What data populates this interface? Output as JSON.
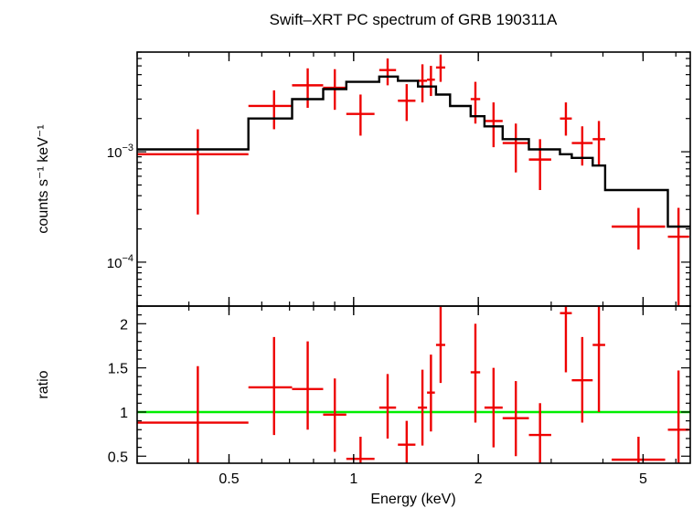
{
  "chart_data": {
    "type": "scatter",
    "title": "Swift–XRT PC spectrum of GRB 190311A",
    "xlabel": "Energy (keV)",
    "x_scale": "log",
    "xlim": [
      0.3,
      6.5
    ],
    "x_ticks": [
      {
        "value": 0.5,
        "label": "0.5"
      },
      {
        "value": 1,
        "label": "1"
      },
      {
        "value": 2,
        "label": "2"
      },
      {
        "value": 5,
        "label": "5"
      }
    ],
    "panels": [
      {
        "name": "spectrum",
        "ylabel": "counts s⁻¹ keV⁻¹",
        "y_scale": "log",
        "ylim": [
          4e-05,
          0.008
        ],
        "y_ticks": [
          {
            "value": 0.001,
            "base": "10",
            "exp": "−3"
          },
          {
            "value": 0.0001,
            "base": "10",
            "exp": "−4"
          }
        ],
        "series": [
          {
            "kind": "data",
            "color": "#ee0000",
            "points": [
              {
                "x": 0.4204,
                "xlo": 0.3,
                "xhi": 0.557,
                "y": 0.00095,
                "ylo": 0.00027,
                "yhi": 0.0016
              },
              {
                "x": 0.6424,
                "xlo": 0.557,
                "xhi": 0.71,
                "y": 0.0026,
                "ylo": 0.0016,
                "yhi": 0.0036
              },
              {
                "x": 0.7745,
                "xlo": 0.71,
                "xhi": 0.844,
                "y": 0.004,
                "ylo": 0.0025,
                "yhi": 0.0057
              },
              {
                "x": 0.9005,
                "xlo": 0.844,
                "xhi": 0.96,
                "y": 0.0038,
                "ylo": 0.0024,
                "yhi": 0.0056
              },
              {
                "x": 1.039,
                "xlo": 0.96,
                "xhi": 1.123,
                "y": 0.0022,
                "ylo": 0.0014,
                "yhi": 0.0033
              },
              {
                "x": 1.208,
                "xlo": 1.153,
                "xhi": 1.266,
                "y": 0.0055,
                "ylo": 0.004,
                "yhi": 0.007
              },
              {
                "x": 1.343,
                "xlo": 1.279,
                "xhi": 1.41,
                "y": 0.0029,
                "ylo": 0.0019,
                "yhi": 0.0041
              },
              {
                "x": 1.466,
                "xlo": 1.43,
                "xhi": 1.504,
                "y": 0.0044,
                "ylo": 0.0028,
                "yhi": 0.0062
              },
              {
                "x": 1.537,
                "xlo": 1.504,
                "xhi": 1.571,
                "y": 0.0045,
                "ylo": 0.0032,
                "yhi": 0.006
              },
              {
                "x": 1.622,
                "xlo": 1.581,
                "xhi": 1.664,
                "y": 0.0058,
                "ylo": 0.0043,
                "yhi": 0.0076
              },
              {
                "x": 1.968,
                "xlo": 1.917,
                "xhi": 2.021,
                "y": 0.003,
                "ylo": 0.0018,
                "yhi": 0.0043
              },
              {
                "x": 2.177,
                "xlo": 2.07,
                "xhi": 2.29,
                "y": 0.0019,
                "ylo": 0.0011,
                "yhi": 0.0028
              },
              {
                "x": 2.464,
                "xlo": 2.29,
                "xhi": 2.65,
                "y": 0.0012,
                "ylo": 0.00065,
                "yhi": 0.0018
              },
              {
                "x": 2.819,
                "xlo": 2.65,
                "xhi": 3.0,
                "y": 0.00085,
                "ylo": 0.00045,
                "yhi": 0.0013
              },
              {
                "x": 3.255,
                "xlo": 3.15,
                "xhi": 3.364,
                "y": 0.002,
                "ylo": 0.0014,
                "yhi": 0.0028
              },
              {
                "x": 3.565,
                "xlo": 3.364,
                "xhi": 3.778,
                "y": 0.0012,
                "ylo": 0.00075,
                "yhi": 0.0017
              },
              {
                "x": 3.911,
                "xlo": 3.778,
                "xhi": 4.05,
                "y": 0.0013,
                "ylo": 0.00075,
                "yhi": 0.0019
              },
              {
                "x": 4.874,
                "xlo": 4.2,
                "xhi": 5.653,
                "y": 0.00021,
                "ylo": 0.00013,
                "yhi": 0.00031
              },
              {
                "x": 6.089,
                "xlo": 5.74,
                "xhi": 6.46,
                "y": 0.00017,
                "ylo": 4e-05,
                "yhi": 0.00031
              }
            ]
          },
          {
            "kind": "model",
            "color": "#000000",
            "steps": [
              {
                "x0": 0.3,
                "x1": 0.557,
                "y": 0.00105
              },
              {
                "x0": 0.557,
                "x1": 0.71,
                "y": 0.002
              },
              {
                "x0": 0.71,
                "x1": 0.844,
                "y": 0.003
              },
              {
                "x0": 0.844,
                "x1": 0.96,
                "y": 0.0037
              },
              {
                "x0": 0.96,
                "x1": 1.153,
                "y": 0.0043
              },
              {
                "x0": 1.153,
                "x1": 1.279,
                "y": 0.0048
              },
              {
                "x0": 1.279,
                "x1": 1.43,
                "y": 0.0044
              },
              {
                "x0": 1.43,
                "x1": 1.581,
                "y": 0.0039
              },
              {
                "x0": 1.581,
                "x1": 1.71,
                "y": 0.0033
              },
              {
                "x0": 1.71,
                "x1": 1.917,
                "y": 0.0026
              },
              {
                "x0": 1.917,
                "x1": 2.07,
                "y": 0.0021
              },
              {
                "x0": 2.07,
                "x1": 2.29,
                "y": 0.0017
              },
              {
                "x0": 2.29,
                "x1": 2.65,
                "y": 0.0013
              },
              {
                "x0": 2.65,
                "x1": 3.15,
                "y": 0.00105
              },
              {
                "x0": 3.15,
                "x1": 3.364,
                "y": 0.00095
              },
              {
                "x0": 3.364,
                "x1": 3.778,
                "y": 0.00088
              },
              {
                "x0": 3.778,
                "x1": 4.05,
                "y": 0.00075
              },
              {
                "x0": 4.05,
                "x1": 5.74,
                "y": 0.00045
              },
              {
                "x0": 5.74,
                "x1": 6.5,
                "y": 0.00021
              }
            ]
          }
        ]
      },
      {
        "name": "ratio",
        "ylabel": "ratio",
        "y_scale": "linear",
        "ylim": [
          0.42,
          2.2
        ],
        "y_ticks": [
          {
            "value": 0.5,
            "label": "0.5"
          },
          {
            "value": 1,
            "label": "1"
          },
          {
            "value": 1.5,
            "label": "1.5"
          },
          {
            "value": 2,
            "label": "2"
          }
        ],
        "reference_line": {
          "y": 1,
          "color": "#00ee00"
        },
        "series": [
          {
            "kind": "data",
            "color": "#ee0000",
            "points": [
              {
                "x": 0.4204,
                "xlo": 0.3,
                "xhi": 0.557,
                "y": 0.88,
                "ylo": 0.26,
                "yhi": 1.52
              },
              {
                "x": 0.6424,
                "xlo": 0.557,
                "xhi": 0.71,
                "y": 1.28,
                "ylo": 0.74,
                "yhi": 1.85
              },
              {
                "x": 0.7745,
                "xlo": 0.71,
                "xhi": 0.844,
                "y": 1.26,
                "ylo": 0.8,
                "yhi": 1.8
              },
              {
                "x": 0.9005,
                "xlo": 0.844,
                "xhi": 0.96,
                "y": 0.97,
                "ylo": 0.55,
                "yhi": 1.38
              },
              {
                "x": 1.039,
                "xlo": 0.96,
                "xhi": 1.123,
                "y": 0.47,
                "ylo": 0.3,
                "yhi": 0.72
              },
              {
                "x": 1.208,
                "xlo": 1.153,
                "xhi": 1.266,
                "y": 1.05,
                "ylo": 0.7,
                "yhi": 1.43
              },
              {
                "x": 1.343,
                "xlo": 1.279,
                "xhi": 1.41,
                "y": 0.63,
                "ylo": 0.35,
                "yhi": 0.9
              },
              {
                "x": 1.466,
                "xlo": 1.43,
                "xhi": 1.504,
                "y": 1.05,
                "ylo": 0.62,
                "yhi": 1.48
              },
              {
                "x": 1.537,
                "xlo": 1.504,
                "xhi": 1.571,
                "y": 1.22,
                "ylo": 0.78,
                "yhi": 1.65
              },
              {
                "x": 1.622,
                "xlo": 1.581,
                "xhi": 1.664,
                "y": 1.76,
                "ylo": 1.33,
                "yhi": 2.2
              },
              {
                "x": 1.968,
                "xlo": 1.917,
                "xhi": 2.021,
                "y": 1.45,
                "ylo": 0.88,
                "yhi": 2.0
              },
              {
                "x": 2.177,
                "xlo": 2.07,
                "xhi": 2.29,
                "y": 1.05,
                "ylo": 0.6,
                "yhi": 1.5
              },
              {
                "x": 2.464,
                "xlo": 2.29,
                "xhi": 2.65,
                "y": 0.93,
                "ylo": 0.5,
                "yhi": 1.35
              },
              {
                "x": 2.819,
                "xlo": 2.65,
                "xhi": 3.0,
                "y": 0.74,
                "ylo": 0.42,
                "yhi": 1.1
              },
              {
                "x": 3.255,
                "xlo": 3.15,
                "xhi": 3.364,
                "y": 2.12,
                "ylo": 1.45,
                "yhi": 2.2
              },
              {
                "x": 3.565,
                "xlo": 3.364,
                "xhi": 3.778,
                "y": 1.36,
                "ylo": 0.88,
                "yhi": 1.85
              },
              {
                "x": 3.911,
                "xlo": 3.778,
                "xhi": 4.05,
                "y": 1.76,
                "ylo": 1.0,
                "yhi": 2.2
              },
              {
                "x": 4.874,
                "xlo": 4.2,
                "xhi": 5.653,
                "y": 0.46,
                "ylo": 0.42,
                "yhi": 0.72
              },
              {
                "x": 6.089,
                "xlo": 5.74,
                "xhi": 6.46,
                "y": 0.8,
                "ylo": 0.42,
                "yhi": 1.47
              }
            ]
          }
        ]
      }
    ]
  }
}
